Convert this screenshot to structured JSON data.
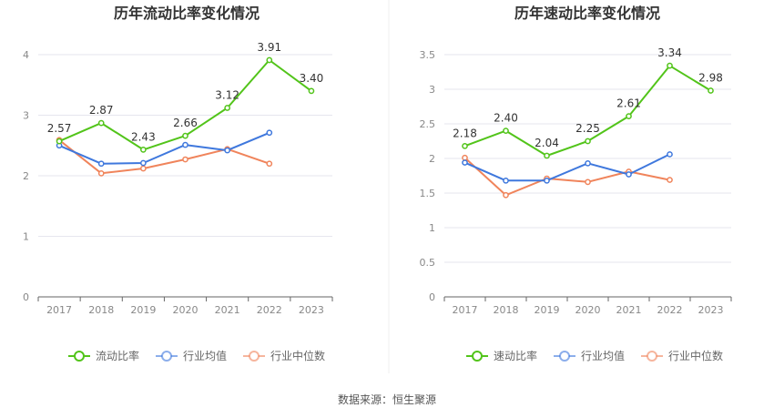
{
  "source_label": "数据来源：恒生聚源",
  "colors": {
    "primary": "#52c41a",
    "average": "#3f78dd",
    "median": "#f0845b",
    "grid": "#e6e6ee",
    "axis": "#666666"
  },
  "chart_data": [
    {
      "type": "line",
      "title": "历年流动比率变化情况",
      "categories": [
        "2017",
        "2018",
        "2019",
        "2020",
        "2021",
        "2022",
        "2023"
      ],
      "ylim": [
        0,
        4
      ],
      "yticks": [
        0,
        1,
        2,
        3,
        4
      ],
      "grid": true,
      "legend_position": "bottom",
      "series": [
        {
          "name": "流动比率",
          "color_key": "primary",
          "labeled": true,
          "values": [
            2.57,
            2.87,
            2.43,
            2.66,
            3.12,
            3.91,
            3.4
          ],
          "labels": [
            "2.57",
            "2.87",
            "2.43",
            "2.66",
            "3.12",
            "3.91",
            "3.40"
          ]
        },
        {
          "name": "行业均值",
          "color_key": "average",
          "labeled": false,
          "values": [
            2.5,
            2.2,
            2.21,
            2.51,
            2.42,
            2.71,
            null
          ]
        },
        {
          "name": "行业中位数",
          "color_key": "median",
          "labeled": false,
          "values": [
            2.59,
            2.04,
            2.12,
            2.27,
            2.44,
            2.2,
            null
          ]
        }
      ]
    },
    {
      "type": "line",
      "title": "历年速动比率变化情况",
      "categories": [
        "2017",
        "2018",
        "2019",
        "2020",
        "2021",
        "2022",
        "2023"
      ],
      "ylim": [
        0,
        3.5
      ],
      "yticks": [
        0,
        0.5,
        1,
        1.5,
        2,
        2.5,
        3,
        3.5
      ],
      "grid": true,
      "legend_position": "bottom",
      "series": [
        {
          "name": "速动比率",
          "color_key": "primary",
          "labeled": true,
          "values": [
            2.18,
            2.4,
            2.04,
            2.25,
            2.61,
            3.34,
            2.98
          ],
          "labels": [
            "2.18",
            "2.40",
            "2.04",
            "2.25",
            "2.61",
            "3.34",
            "2.98"
          ]
        },
        {
          "name": "行业均值",
          "color_key": "average",
          "labeled": false,
          "values": [
            1.94,
            1.68,
            1.68,
            1.93,
            1.77,
            2.06,
            null
          ]
        },
        {
          "name": "行业中位数",
          "color_key": "median",
          "labeled": false,
          "values": [
            2.01,
            1.47,
            1.71,
            1.66,
            1.81,
            1.69,
            null
          ]
        }
      ]
    }
  ]
}
